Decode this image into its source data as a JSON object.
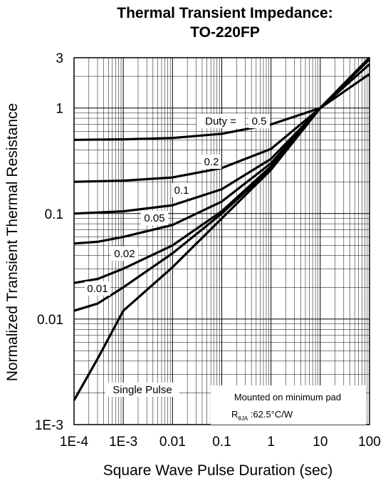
{
  "chart_data": {
    "type": "line",
    "title": "Thermal Transient Impedance:",
    "subtitle": "TO-220FP",
    "xlabel": "Square Wave Pulse Duration (sec)",
    "ylabel": "Normalized Transient Thermal Resistance",
    "x_scale": "log",
    "y_scale": "log",
    "xlim": [
      0.0001,
      100
    ],
    "ylim": [
      0.001,
      3
    ],
    "x_ticks": [
      {
        "value": 0.0001,
        "label": "1E-4"
      },
      {
        "value": 0.001,
        "label": "1E-3"
      },
      {
        "value": 0.01,
        "label": "0.01"
      },
      {
        "value": 0.1,
        "label": "0.1"
      },
      {
        "value": 1,
        "label": "1"
      },
      {
        "value": 10,
        "label": "10"
      },
      {
        "value": 100,
        "label": "100"
      }
    ],
    "y_ticks": [
      {
        "value": 0.001,
        "label": "1E-3"
      },
      {
        "value": 0.01,
        "label": "0.01"
      },
      {
        "value": 0.1,
        "label": "0.1"
      },
      {
        "value": 1,
        "label": "1"
      },
      {
        "value": 3,
        "label": "3"
      }
    ],
    "grid": true,
    "line_color": "#000000",
    "series": [
      {
        "name": "0.5",
        "x": [
          0.0001,
          0.001,
          0.01,
          0.1,
          1,
          10,
          100
        ],
        "y": [
          0.5,
          0.505,
          0.52,
          0.57,
          0.7,
          1.0,
          2.1
        ]
      },
      {
        "name": "0.2",
        "x": [
          0.0001,
          0.001,
          0.01,
          0.1,
          1,
          10,
          100
        ],
        "y": [
          0.2,
          0.205,
          0.22,
          0.27,
          0.41,
          1.0,
          2.6
        ]
      },
      {
        "name": "0.1",
        "x": [
          0.0001,
          0.001,
          0.01,
          0.1,
          1,
          10,
          100
        ],
        "y": [
          0.1,
          0.105,
          0.12,
          0.17,
          0.33,
          1.0,
          2.9
        ]
      },
      {
        "name": "0.05",
        "x": [
          0.0001,
          0.0003,
          0.001,
          0.01,
          0.1,
          1,
          10,
          100
        ],
        "y": [
          0.052,
          0.054,
          0.06,
          0.078,
          0.13,
          0.3,
          1.0,
          3.0
        ]
      },
      {
        "name": "0.02",
        "x": [
          0.0001,
          0.0003,
          0.001,
          0.01,
          0.1,
          1,
          10,
          100
        ],
        "y": [
          0.022,
          0.024,
          0.03,
          0.05,
          0.105,
          0.28,
          1.0,
          3.0
        ]
      },
      {
        "name": "0.01",
        "x": [
          0.0001,
          0.0003,
          0.001,
          0.01,
          0.1,
          1,
          10,
          100
        ],
        "y": [
          0.012,
          0.014,
          0.02,
          0.042,
          0.1,
          0.27,
          1.0,
          3.0
        ]
      },
      {
        "name": "Single Pulse",
        "x": [
          0.0001,
          0.0003,
          0.001,
          0.01,
          0.1,
          1,
          10,
          100
        ],
        "y": [
          0.0017,
          0.0042,
          0.012,
          0.031,
          0.09,
          0.26,
          1.0,
          3.0
        ]
      }
    ],
    "annotations": {
      "duty_prefix": "Duty =",
      "note_line1": "Mounted on minimum pad",
      "note_line2_prefix": "R",
      "note_line2_sub": "θJA",
      "note_line2_value": " :62.5°C/W"
    }
  }
}
